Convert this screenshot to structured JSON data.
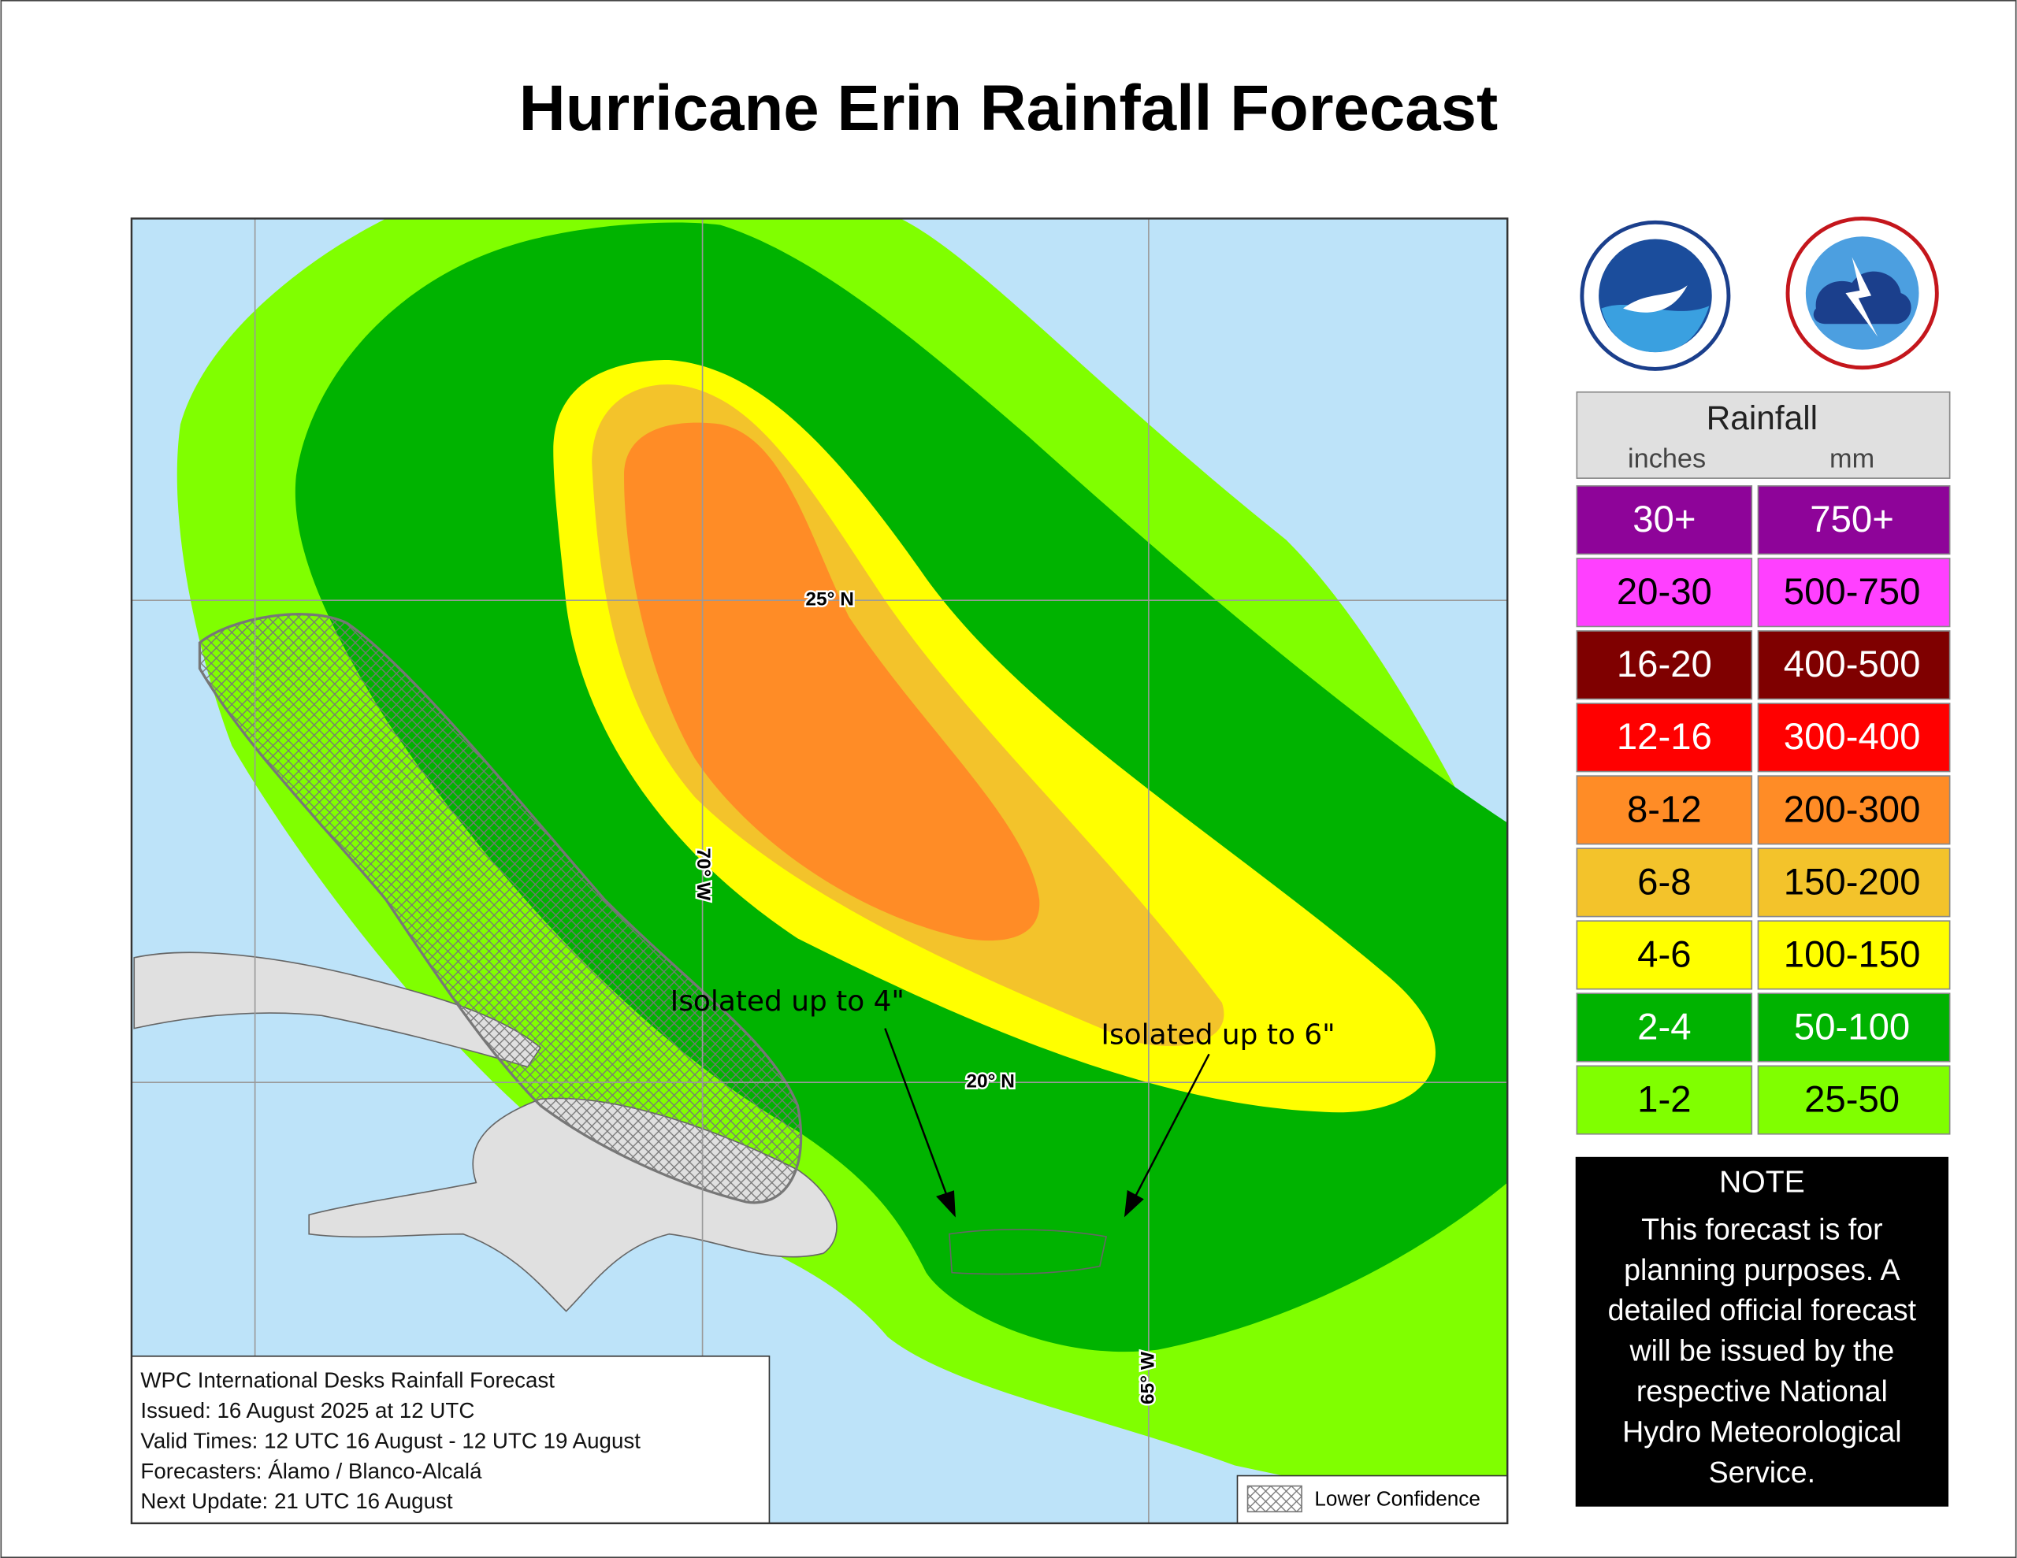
{
  "header": {
    "title": "Hurricane Erin Rainfall Forecast"
  },
  "map": {
    "grid_labels": [
      "25° N",
      "70° W",
      "20° N",
      "65° W"
    ],
    "annotations": [
      "Isolated up to 4\"",
      "Isolated up to 6\""
    ],
    "info_box": [
      "WPC International Desks Rainfall Forecast",
      "Issued: 16 August 2025 at 12 UTC",
      "Valid Times: 12 UTC 16 August - 12 UTC 19 August",
      "Forecasters: Álamo / Blanco-Alcalá",
      "Next Update: 21 UTC 16 August"
    ],
    "hatch_legend": "Lower Confidence"
  },
  "legend": {
    "title": "Rainfall",
    "inches_label": "inches",
    "mm_label": "mm",
    "rows": [
      {
        "inches": "30+",
        "mm": "750+",
        "color": "#8e0499"
      },
      {
        "inches": "20-30",
        "mm": "500-750",
        "color": "#ff40ff"
      },
      {
        "inches": "16-20",
        "mm": "400-500",
        "color": "#7f0000"
      },
      {
        "inches": "12-16",
        "mm": "300-400",
        "color": "#ff0000"
      },
      {
        "inches": "8-12",
        "mm": "200-300",
        "color": "#ff8c26"
      },
      {
        "inches": "6-8",
        "mm": "150-200",
        "color": "#f3c32b"
      },
      {
        "inches": "4-6",
        "mm": "100-150",
        "color": "#ffff00"
      },
      {
        "inches": "2-4",
        "mm": "50-100",
        "color": "#00b300"
      },
      {
        "inches": "1-2",
        "mm": "25-50",
        "color": "#80ff00"
      }
    ]
  },
  "note": {
    "title": "NOTE",
    "lines": [
      "This forecast is for",
      "planning purposes. A",
      "detailed official forecast",
      "will be issued by the",
      "respective National",
      "Hydro Meteorological",
      "Service."
    ]
  }
}
